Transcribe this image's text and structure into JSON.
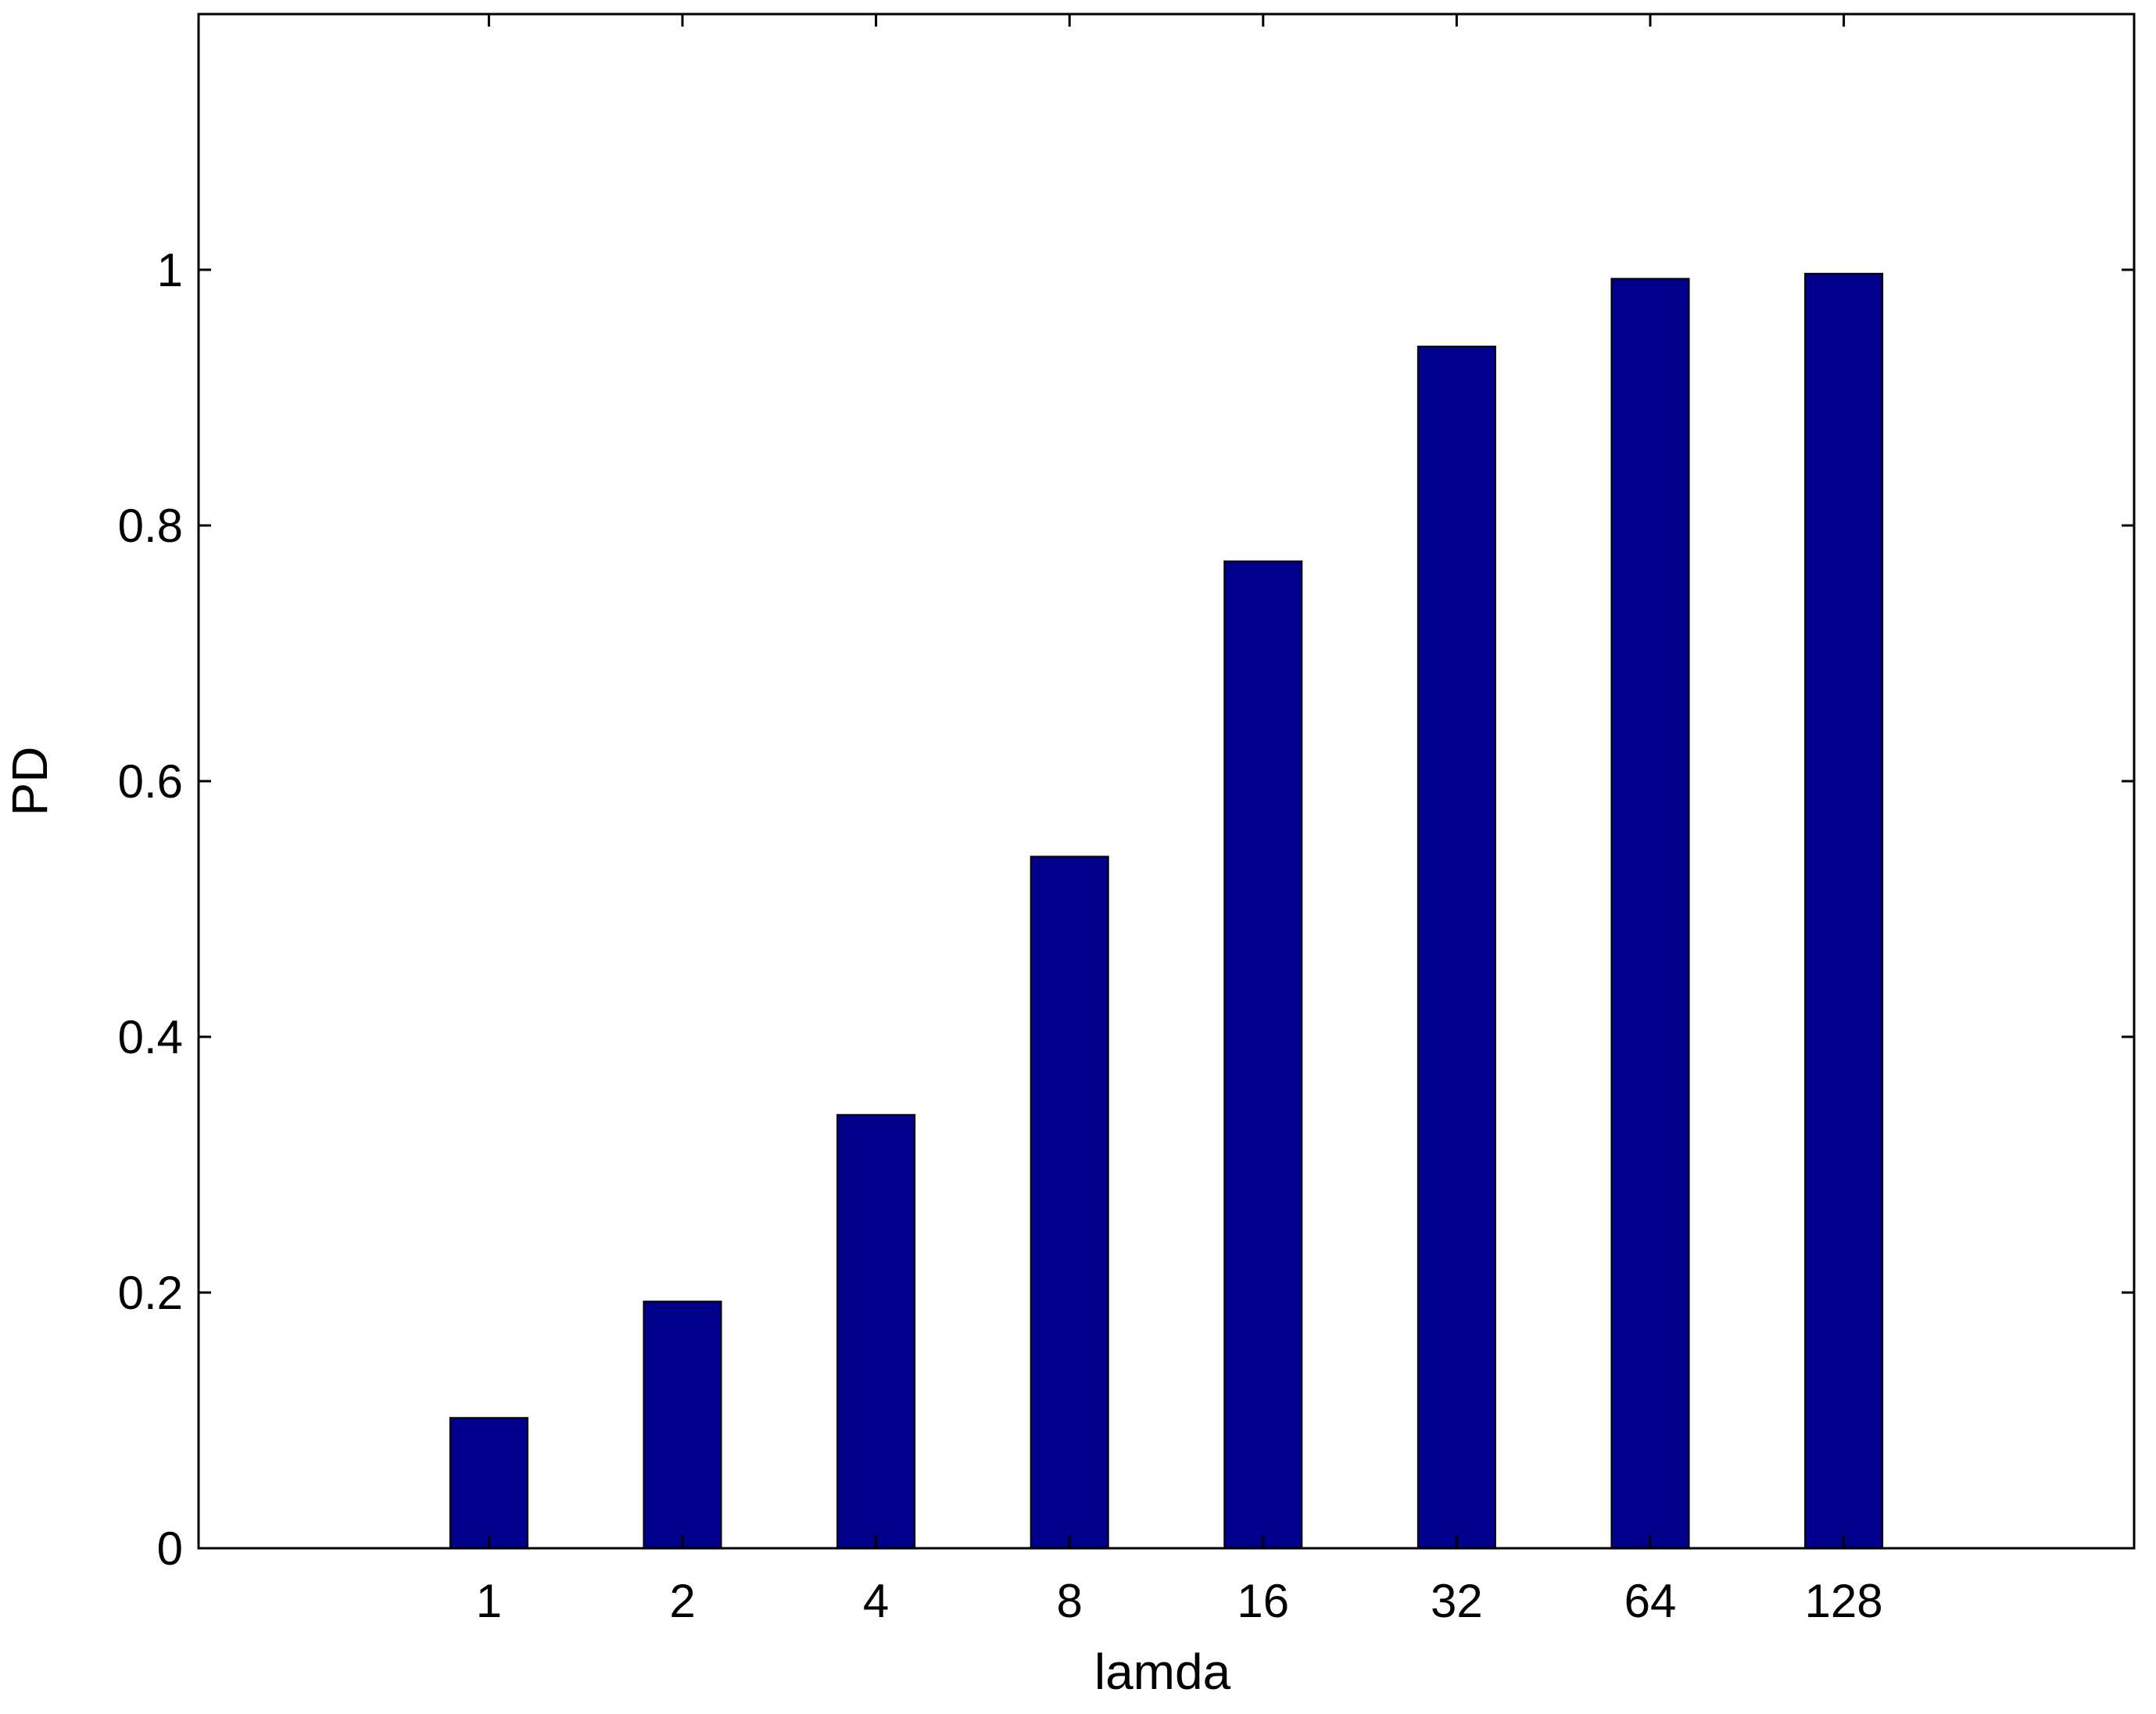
{
  "chart_data": {
    "type": "bar",
    "categories": [
      "1",
      "2",
      "4",
      "8",
      "16",
      "32",
      "64",
      "128"
    ],
    "values": [
      0.102,
      0.193,
      0.339,
      0.541,
      0.772,
      0.94,
      0.993,
      0.997
    ],
    "xlabel": "lamda",
    "ylabel": "PD",
    "ylim": [
      0,
      1.2
    ],
    "yticks": [
      0,
      0.2,
      0.4,
      0.6,
      0.8,
      1
    ],
    "ytick_labels": [
      "0",
      "0.2",
      "0.4",
      "0.6",
      "0.8",
      "1"
    ],
    "grid": false,
    "legend": "none",
    "bar_color": "#00008B",
    "axes_color": "#000000"
  }
}
